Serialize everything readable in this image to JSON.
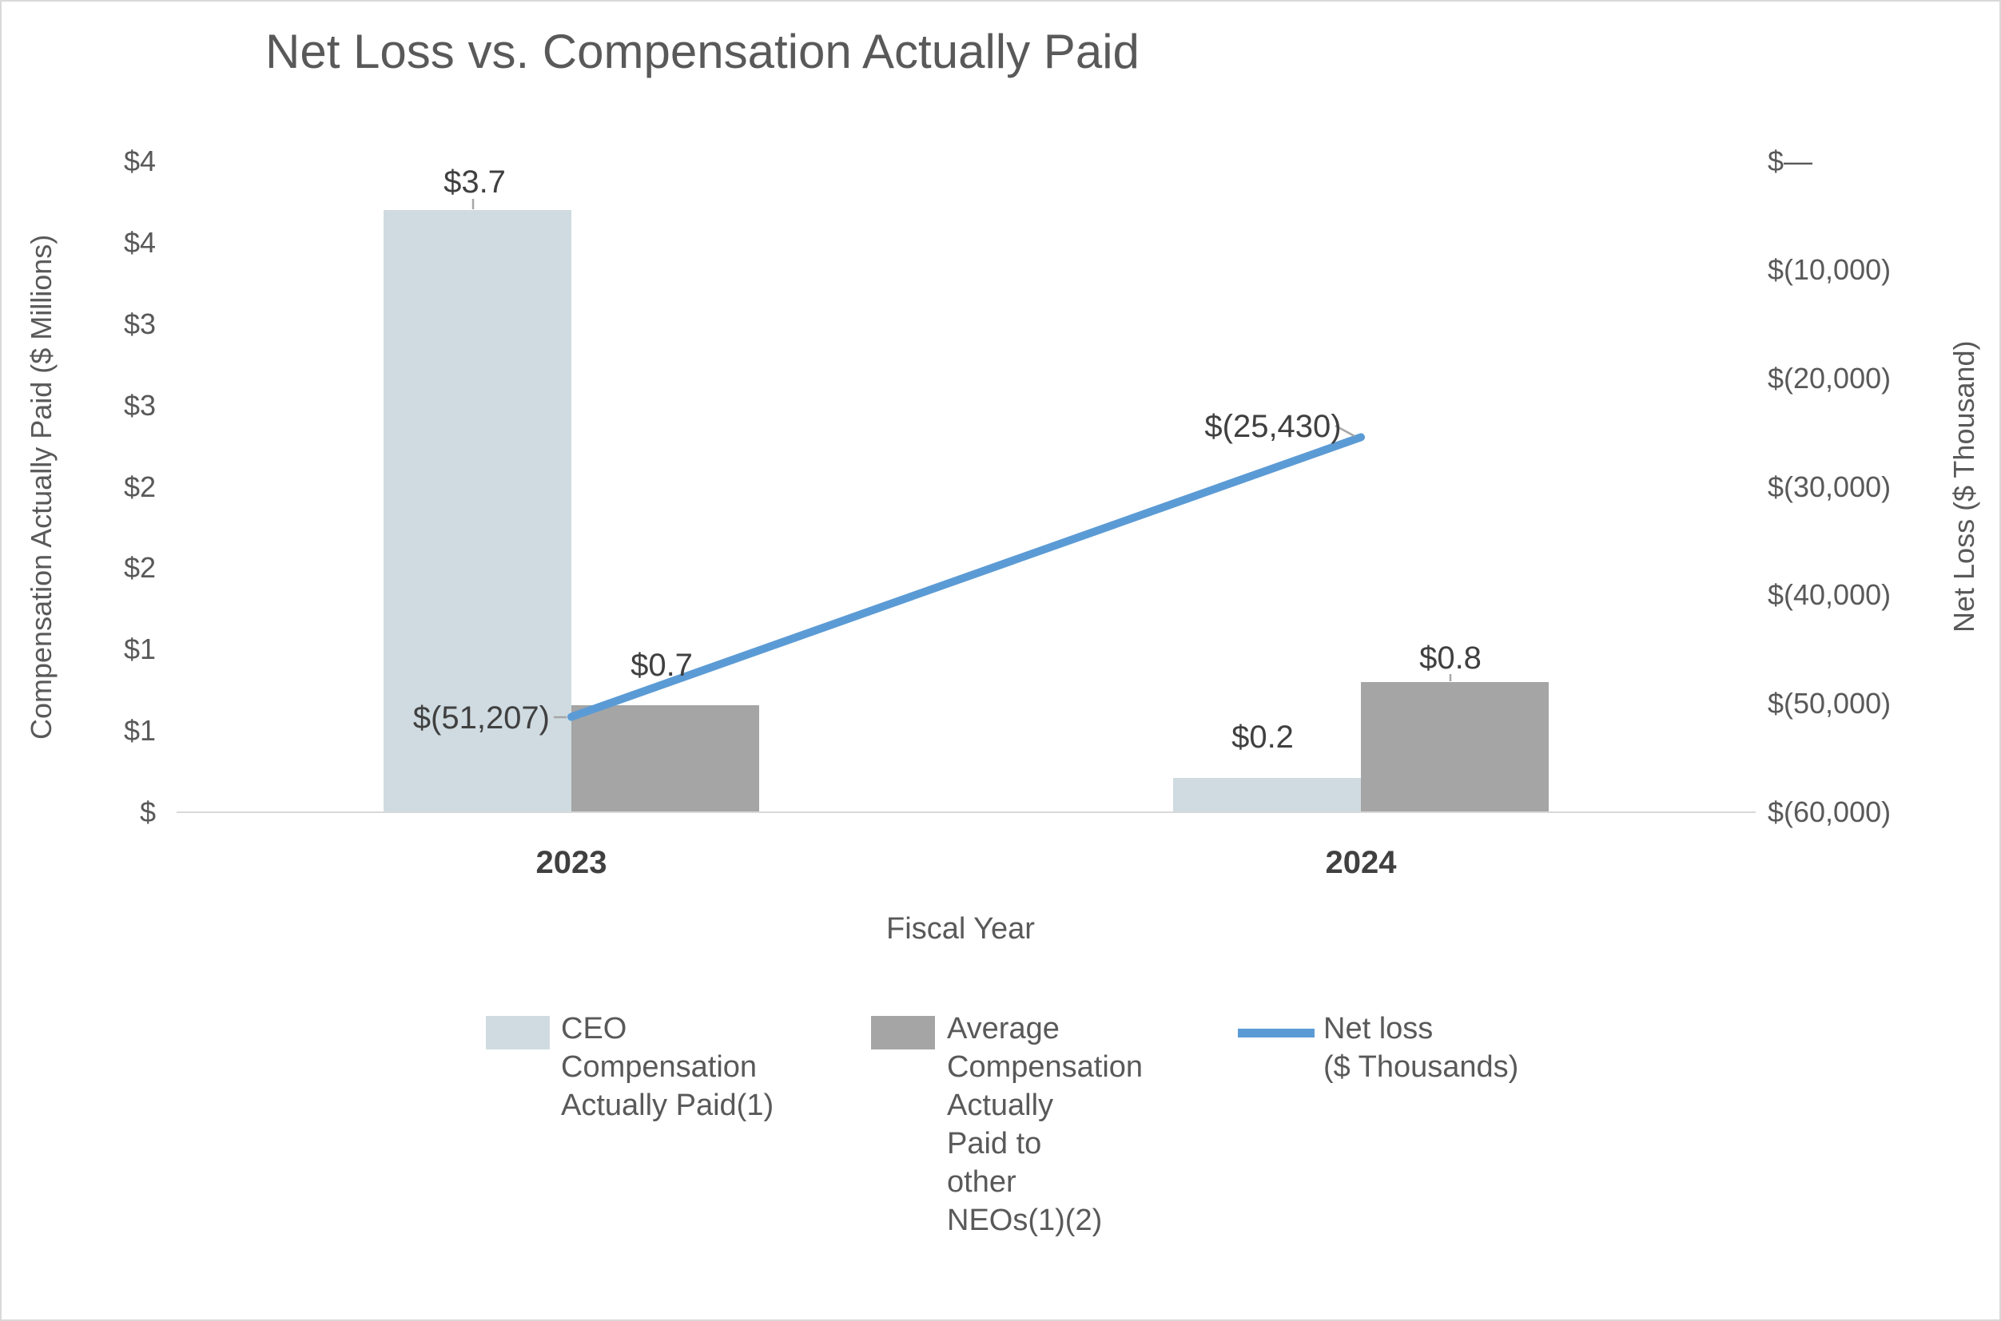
{
  "chart_data": {
    "type": "bar",
    "subtype": "grouped-bar-with-line-combo",
    "title": "Net Loss vs. Compensation Actually Paid",
    "xlabel": "Fiscal Year",
    "ylabel_left": "Compensation Actually Paid ($ Millions)",
    "ylabel_right": "Net Loss ($ Thousand)",
    "ylim_left": [
      0,
      4
    ],
    "ylim_right": [
      -60000,
      0
    ],
    "grid": false,
    "legend_position": "bottom",
    "categories": [
      "2023",
      "2024"
    ],
    "series": [
      {
        "key": "ceo-cap",
        "name": "CEO Compensation Actually Paid(1)",
        "type": "bar",
        "axis": "left",
        "color": "#cfdbe1",
        "values": [
          3.7,
          0.21
        ],
        "labels": [
          "$3.7",
          "$0.2"
        ]
      },
      {
        "key": "neo-cap",
        "name": "Average Compensation Actually Paid to other NEOs(1)(2)",
        "type": "bar",
        "axis": "left",
        "color": "#a5a5a5",
        "values": [
          0.66,
          0.8
        ],
        "labels": [
          "$0.7",
          "$0.8"
        ]
      },
      {
        "key": "net-loss",
        "name": "Net loss ($ Thousands)",
        "type": "line",
        "axis": "right",
        "color": "#5b9bd5",
        "values": [
          -51207,
          -25430
        ],
        "labels": [
          "$(51,207)",
          "$(25,430)"
        ]
      }
    ]
  },
  "axes": {
    "left_ticks": [
      "$4",
      "$4",
      "$3",
      "$3",
      "$2",
      "$2",
      "$1",
      "$1",
      "$"
    ],
    "right_ticks": [
      "$—",
      "$(10,000)",
      "$(20,000)",
      "$(30,000)",
      "$(40,000)",
      "$(50,000)",
      "$(60,000)"
    ]
  },
  "legend": {
    "items": [
      {
        "label": "CEO\nCompensation\nActually Paid(1)",
        "swatch": "bar",
        "color": "#cfdbe1"
      },
      {
        "label": "Average\nCompensation\nActually\nPaid to\nother\nNEOs(1)(2)",
        "swatch": "bar",
        "color": "#a5a5a5"
      },
      {
        "label": "Net loss\n($ Thousands)",
        "swatch": "line",
        "color": "#5b9bd5"
      }
    ]
  },
  "colors": {
    "title_text": "#595959",
    "axis_text": "#595959",
    "data_label_text": "#404040",
    "category_text": "#404040",
    "axis_line": "#d9d9d9",
    "leader_line": "#a6a6a6",
    "background": "#ffffff",
    "border": "#d9d9d9"
  }
}
